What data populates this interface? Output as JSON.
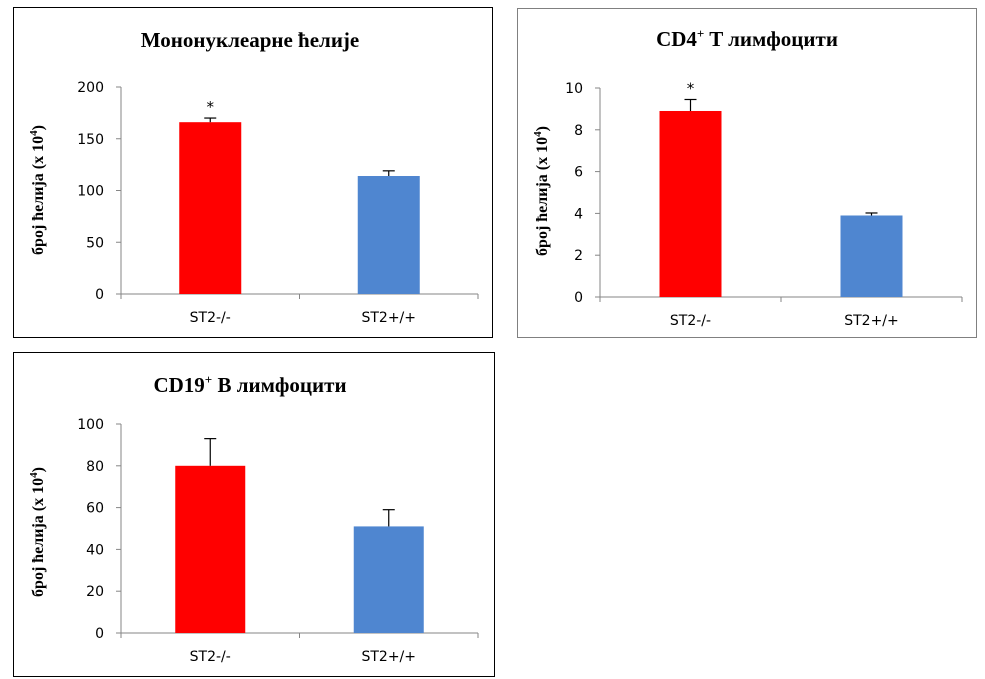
{
  "chart_data": [
    {
      "type": "bar",
      "title": "Мононуклеарне ћелије",
      "ylabel": "број ћелија (x 10",
      "ylabel_sup": "4",
      "ylabel_end": ")",
      "categories": [
        "ST2-/-",
        "ST2+/+"
      ],
      "values": [
        166,
        114
      ],
      "errors": [
        4,
        5
      ],
      "significance": [
        "*",
        ""
      ],
      "colors": [
        "#ff0000",
        "#4f86d0"
      ],
      "ylim": [
        0,
        200
      ],
      "yticks": [
        0,
        50,
        100,
        150,
        200
      ],
      "grid": false,
      "border": true
    },
    {
      "type": "bar",
      "title": "CD4",
      "title_sup": "+",
      "title_end": " T лимфоцити",
      "ylabel": "број ћелија (x 10",
      "ylabel_sup": "4",
      "ylabel_end": ")",
      "categories": [
        "ST2-/-",
        "ST2+/+"
      ],
      "values": [
        8.9,
        3.9
      ],
      "errors": [
        0.55,
        0.12
      ],
      "significance": [
        "*",
        ""
      ],
      "colors": [
        "#ff0000",
        "#4f86d0"
      ],
      "ylim": [
        0,
        10
      ],
      "yticks": [
        0,
        2,
        4,
        6,
        8,
        10
      ],
      "grid": false,
      "border": true
    },
    {
      "type": "bar",
      "title": "CD19",
      "title_sup": "+",
      "title_end": " B лимфоцити",
      "ylabel": "број ћелија (x 10",
      "ylabel_sup": "4",
      "ylabel_end": ")",
      "categories": [
        "ST2-/-",
        "ST2+/+"
      ],
      "values": [
        80,
        51
      ],
      "errors": [
        13,
        8
      ],
      "significance": [
        "",
        ""
      ],
      "colors": [
        "#ff0000",
        "#4f86d0"
      ],
      "ylim": [
        0,
        100
      ],
      "yticks": [
        0,
        20,
        40,
        60,
        80,
        100
      ],
      "grid": false,
      "border": true
    }
  ]
}
